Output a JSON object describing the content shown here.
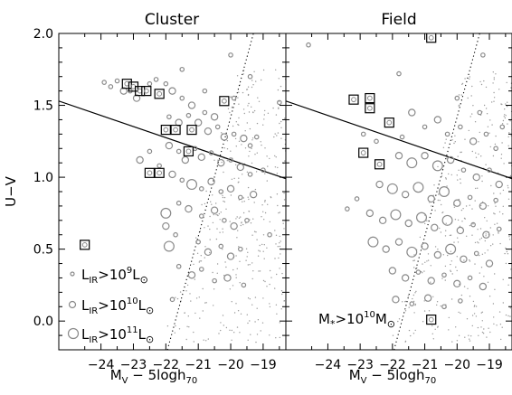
{
  "chart_data": {
    "type": "scatter",
    "ylabel": "U−V",
    "ylim": [
      -0.2,
      2.0
    ],
    "yticks": [
      0.0,
      0.5,
      1.0,
      1.5,
      2.0
    ],
    "ytick_labels": [
      "0.0",
      "0.5",
      "1.0",
      "1.5",
      "2.0"
    ],
    "xlim": [
      -25.3,
      -18.3
    ],
    "xticks": [
      -24,
      -23,
      -22,
      -21,
      -20,
      -19
    ],
    "xtick_labels": [
      "−24",
      "−23",
      "−22",
      "−21",
      "−20",
      "−19"
    ],
    "xlabel": {
      "main": "M",
      "sub": "V",
      "mid": " − 5logh",
      "sub2": "70"
    },
    "red_sequence_line": {
      "x": [
        -25.3,
        -18.3
      ],
      "y": [
        1.53,
        0.99
      ]
    },
    "completeness_line": {
      "x": [
        -21.95,
        -19.3
      ],
      "y": [
        -0.2,
        2.0
      ]
    },
    "colors": {
      "circle": "#8a8a8a",
      "square": "#000000",
      "line": "#000000",
      "dots": "#9a9a9a"
    },
    "legend": [
      {
        "main": "L",
        "sub": "IR",
        "mid": ">10",
        "sup": "9",
        "end": "L",
        "endsub": "⊙",
        "size": "small"
      },
      {
        "main": "L",
        "sub": "IR",
        "mid": ">10",
        "sup": "10",
        "end": "L",
        "endsub": "⊙",
        "size": "medium"
      },
      {
        "main": "L",
        "sub": "IR",
        "mid": ">10",
        "sup": "11",
        "end": "L",
        "endsub": "⊙",
        "size": "large"
      }
    ],
    "panels": [
      {
        "title": "Cluster",
        "squares": [
          {
            "x": -23.2,
            "y": 1.65
          },
          {
            "x": -23.0,
            "y": 1.63
          },
          {
            "x": -22.8,
            "y": 1.6
          },
          {
            "x": -22.6,
            "y": 1.6
          },
          {
            "x": -22.2,
            "y": 1.58
          },
          {
            "x": -22.0,
            "y": 1.33
          },
          {
            "x": -21.7,
            "y": 1.33
          },
          {
            "x": -21.3,
            "y": 1.18
          },
          {
            "x": -21.2,
            "y": 1.33
          },
          {
            "x": -20.2,
            "y": 1.53
          },
          {
            "x": -22.5,
            "y": 1.03
          },
          {
            "x": -22.2,
            "y": 1.03
          },
          {
            "x": -24.5,
            "y": 0.53
          }
        ],
        "circles": [
          {
            "x": -23.9,
            "y": 1.66,
            "s": 1
          },
          {
            "x": -23.7,
            "y": 1.63,
            "s": 1
          },
          {
            "x": -23.5,
            "y": 1.67,
            "s": 1
          },
          {
            "x": -23.3,
            "y": 1.6,
            "s": 2
          },
          {
            "x": -23.1,
            "y": 1.6,
            "s": 1
          },
          {
            "x": -22.9,
            "y": 1.55,
            "s": 2
          },
          {
            "x": -22.5,
            "y": 1.65,
            "s": 1
          },
          {
            "x": -22.3,
            "y": 1.68,
            "s": 1
          },
          {
            "x": -22.0,
            "y": 1.65,
            "s": 1
          },
          {
            "x": -21.8,
            "y": 1.6,
            "s": 2
          },
          {
            "x": -21.5,
            "y": 1.55,
            "s": 1
          },
          {
            "x": -21.2,
            "y": 1.5,
            "s": 2
          },
          {
            "x": -20.8,
            "y": 1.45,
            "s": 1
          },
          {
            "x": -20.5,
            "y": 1.42,
            "s": 2
          },
          {
            "x": -21.9,
            "y": 1.42,
            "s": 1
          },
          {
            "x": -21.6,
            "y": 1.38,
            "s": 2
          },
          {
            "x": -21.3,
            "y": 1.43,
            "s": 1
          },
          {
            "x": -21.0,
            "y": 1.38,
            "s": 2
          },
          {
            "x": -20.7,
            "y": 1.32,
            "s": 2
          },
          {
            "x": -20.4,
            "y": 1.35,
            "s": 1
          },
          {
            "x": -20.2,
            "y": 1.28,
            "s": 2
          },
          {
            "x": -19.9,
            "y": 1.3,
            "s": 1
          },
          {
            "x": -19.6,
            "y": 1.27,
            "s": 2
          },
          {
            "x": -19.4,
            "y": 1.22,
            "s": 1
          },
          {
            "x": -19.2,
            "y": 1.28,
            "s": 1
          },
          {
            "x": -21.9,
            "y": 1.22,
            "s": 2
          },
          {
            "x": -21.6,
            "y": 1.18,
            "s": 1
          },
          {
            "x": -21.4,
            "y": 1.12,
            "s": 2
          },
          {
            "x": -21.1,
            "y": 1.2,
            "s": 1
          },
          {
            "x": -20.9,
            "y": 1.14,
            "s": 2
          },
          {
            "x": -20.6,
            "y": 1.17,
            "s": 1
          },
          {
            "x": -20.3,
            "y": 1.1,
            "s": 2
          },
          {
            "x": -20.0,
            "y": 1.12,
            "s": 1
          },
          {
            "x": -19.7,
            "y": 1.07,
            "s": 2
          },
          {
            "x": -19.4,
            "y": 1.02,
            "s": 1
          },
          {
            "x": -21.8,
            "y": 1.02,
            "s": 2
          },
          {
            "x": -21.5,
            "y": 0.98,
            "s": 1
          },
          {
            "x": -21.2,
            "y": 0.95,
            "s": 3
          },
          {
            "x": -20.9,
            "y": 0.92,
            "s": 1
          },
          {
            "x": -20.6,
            "y": 0.97,
            "s": 2
          },
          {
            "x": -20.3,
            "y": 0.9,
            "s": 1
          },
          {
            "x": -20.0,
            "y": 0.92,
            "s": 2
          },
          {
            "x": -19.7,
            "y": 0.86,
            "s": 1
          },
          {
            "x": -19.3,
            "y": 0.88,
            "s": 2
          },
          {
            "x": -22.8,
            "y": 1.12,
            "s": 2
          },
          {
            "x": -22.5,
            "y": 1.18,
            "s": 1
          },
          {
            "x": -22.2,
            "y": 1.08,
            "s": 1
          },
          {
            "x": -21.6,
            "y": 0.82,
            "s": 1
          },
          {
            "x": -21.3,
            "y": 0.78,
            "s": 2
          },
          {
            "x": -20.9,
            "y": 0.73,
            "s": 1
          },
          {
            "x": -20.5,
            "y": 0.77,
            "s": 2
          },
          {
            "x": -20.2,
            "y": 0.7,
            "s": 1
          },
          {
            "x": -19.9,
            "y": 0.66,
            "s": 2
          },
          {
            "x": -19.5,
            "y": 0.7,
            "s": 1
          },
          {
            "x": -22.0,
            "y": 0.75,
            "s": 3
          },
          {
            "x": -22.0,
            "y": 0.66,
            "s": 2
          },
          {
            "x": -21.9,
            "y": 0.52,
            "s": 3
          },
          {
            "x": -21.7,
            "y": 0.6,
            "s": 1
          },
          {
            "x": -21.0,
            "y": 0.55,
            "s": 1
          },
          {
            "x": -20.7,
            "y": 0.48,
            "s": 2
          },
          {
            "x": -20.3,
            "y": 0.52,
            "s": 1
          },
          {
            "x": -20.0,
            "y": 0.45,
            "s": 2
          },
          {
            "x": -19.7,
            "y": 0.5,
            "s": 1
          },
          {
            "x": -21.6,
            "y": 0.38,
            "s": 1
          },
          {
            "x": -21.2,
            "y": 0.32,
            "s": 2
          },
          {
            "x": -20.9,
            "y": 0.36,
            "s": 1
          },
          {
            "x": -20.5,
            "y": 0.28,
            "s": 1
          },
          {
            "x": -20.1,
            "y": 0.3,
            "s": 2
          },
          {
            "x": -19.6,
            "y": 0.25,
            "s": 1
          },
          {
            "x": -20.0,
            "y": 1.85,
            "s": 1
          },
          {
            "x": -19.4,
            "y": 1.7,
            "s": 1
          },
          {
            "x": -21.5,
            "y": 1.75,
            "s": 1
          },
          {
            "x": -20.8,
            "y": 1.6,
            "s": 1
          },
          {
            "x": -19.9,
            "y": 1.55,
            "s": 1
          },
          {
            "x": -18.5,
            "y": 1.52,
            "s": 1
          },
          {
            "x": -19.0,
            "y": 1.05,
            "s": 1
          },
          {
            "x": -18.8,
            "y": 0.6,
            "s": 1
          },
          {
            "x": -21.8,
            "y": 0.15,
            "s": 1
          }
        ]
      },
      {
        "title": "Field",
        "annotation": {
          "main": "M",
          "sub": "*",
          "mid": ">10",
          "sup": "10",
          "end": "M",
          "endsub": "⊙"
        },
        "squares": [
          {
            "x": -23.2,
            "y": 1.54
          },
          {
            "x": -22.7,
            "y": 1.55
          },
          {
            "x": -22.7,
            "y": 1.48
          },
          {
            "x": -22.1,
            "y": 1.38
          },
          {
            "x": -22.9,
            "y": 1.17
          },
          {
            "x": -22.4,
            "y": 1.09
          },
          {
            "x": -20.8,
            "y": 1.97
          },
          {
            "x": -20.8,
            "y": 0.01
          }
        ],
        "circles": [
          {
            "x": -24.6,
            "y": 1.92,
            "s": 1
          },
          {
            "x": -21.8,
            "y": 1.72,
            "s": 1
          },
          {
            "x": -19.2,
            "y": 1.85,
            "s": 1
          },
          {
            "x": -21.4,
            "y": 1.45,
            "s": 2
          },
          {
            "x": -21.0,
            "y": 1.35,
            "s": 1
          },
          {
            "x": -20.6,
            "y": 1.4,
            "s": 2
          },
          {
            "x": -20.3,
            "y": 1.3,
            "s": 1
          },
          {
            "x": -19.9,
            "y": 1.35,
            "s": 1
          },
          {
            "x": -19.5,
            "y": 1.25,
            "s": 2
          },
          {
            "x": -19.1,
            "y": 1.3,
            "s": 1
          },
          {
            "x": -18.8,
            "y": 1.2,
            "s": 1
          },
          {
            "x": -21.8,
            "y": 1.15,
            "s": 2
          },
          {
            "x": -21.4,
            "y": 1.1,
            "s": 3
          },
          {
            "x": -21.0,
            "y": 1.15,
            "s": 2
          },
          {
            "x": -20.6,
            "y": 1.08,
            "s": 3
          },
          {
            "x": -20.2,
            "y": 1.12,
            "s": 2
          },
          {
            "x": -19.8,
            "y": 1.05,
            "s": 1
          },
          {
            "x": -19.4,
            "y": 1.0,
            "s": 2
          },
          {
            "x": -19.0,
            "y": 1.05,
            "s": 1
          },
          {
            "x": -18.7,
            "y": 0.95,
            "s": 2
          },
          {
            "x": -22.4,
            "y": 0.95,
            "s": 2
          },
          {
            "x": -22.0,
            "y": 0.92,
            "s": 3
          },
          {
            "x": -21.6,
            "y": 0.88,
            "s": 2
          },
          {
            "x": -21.2,
            "y": 0.93,
            "s": 3
          },
          {
            "x": -20.8,
            "y": 0.85,
            "s": 2
          },
          {
            "x": -20.4,
            "y": 0.9,
            "s": 3
          },
          {
            "x": -20.0,
            "y": 0.82,
            "s": 2
          },
          {
            "x": -19.6,
            "y": 0.86,
            "s": 1
          },
          {
            "x": -19.2,
            "y": 0.8,
            "s": 2
          },
          {
            "x": -18.8,
            "y": 0.84,
            "s": 1
          },
          {
            "x": -23.1,
            "y": 0.85,
            "s": 1
          },
          {
            "x": -23.4,
            "y": 0.78,
            "s": 1
          },
          {
            "x": -22.7,
            "y": 0.75,
            "s": 2
          },
          {
            "x": -22.3,
            "y": 0.7,
            "s": 2
          },
          {
            "x": -21.9,
            "y": 0.74,
            "s": 3
          },
          {
            "x": -21.5,
            "y": 0.68,
            "s": 2
          },
          {
            "x": -21.1,
            "y": 0.72,
            "s": 3
          },
          {
            "x": -20.7,
            "y": 0.65,
            "s": 2
          },
          {
            "x": -20.3,
            "y": 0.7,
            "s": 3
          },
          {
            "x": -19.9,
            "y": 0.63,
            "s": 2
          },
          {
            "x": -19.5,
            "y": 0.67,
            "s": 1
          },
          {
            "x": -19.1,
            "y": 0.6,
            "s": 2
          },
          {
            "x": -18.7,
            "y": 0.64,
            "s": 1
          },
          {
            "x": -22.6,
            "y": 0.55,
            "s": 3
          },
          {
            "x": -22.2,
            "y": 0.5,
            "s": 2
          },
          {
            "x": -21.8,
            "y": 0.55,
            "s": 2
          },
          {
            "x": -21.4,
            "y": 0.48,
            "s": 3
          },
          {
            "x": -21.0,
            "y": 0.52,
            "s": 2
          },
          {
            "x": -20.6,
            "y": 0.46,
            "s": 2
          },
          {
            "x": -20.2,
            "y": 0.5,
            "s": 3
          },
          {
            "x": -19.8,
            "y": 0.43,
            "s": 2
          },
          {
            "x": -19.4,
            "y": 0.47,
            "s": 1
          },
          {
            "x": -19.0,
            "y": 0.4,
            "s": 2
          },
          {
            "x": -22.0,
            "y": 0.35,
            "s": 2
          },
          {
            "x": -21.6,
            "y": 0.3,
            "s": 2
          },
          {
            "x": -21.2,
            "y": 0.34,
            "s": 1
          },
          {
            "x": -20.8,
            "y": 0.28,
            "s": 2
          },
          {
            "x": -20.4,
            "y": 0.32,
            "s": 1
          },
          {
            "x": -20.0,
            "y": 0.26,
            "s": 2
          },
          {
            "x": -19.6,
            "y": 0.3,
            "s": 1
          },
          {
            "x": -19.2,
            "y": 0.24,
            "s": 2
          },
          {
            "x": -21.9,
            "y": 0.15,
            "s": 2
          },
          {
            "x": -21.4,
            "y": 0.12,
            "s": 1
          },
          {
            "x": -20.9,
            "y": 0.16,
            "s": 2
          },
          {
            "x": -20.4,
            "y": 0.1,
            "s": 1
          },
          {
            "x": -19.9,
            "y": 0.14,
            "s": 1
          },
          {
            "x": -21.7,
            "y": 1.28,
            "s": 1
          },
          {
            "x": -22.5,
            "y": 1.25,
            "s": 1
          },
          {
            "x": -20.0,
            "y": 1.55,
            "s": 1
          },
          {
            "x": -19.3,
            "y": 1.45,
            "s": 1
          },
          {
            "x": -18.6,
            "y": 1.35,
            "s": 1
          },
          {
            "x": -22.9,
            "y": 1.3,
            "s": 1
          }
        ]
      }
    ]
  }
}
